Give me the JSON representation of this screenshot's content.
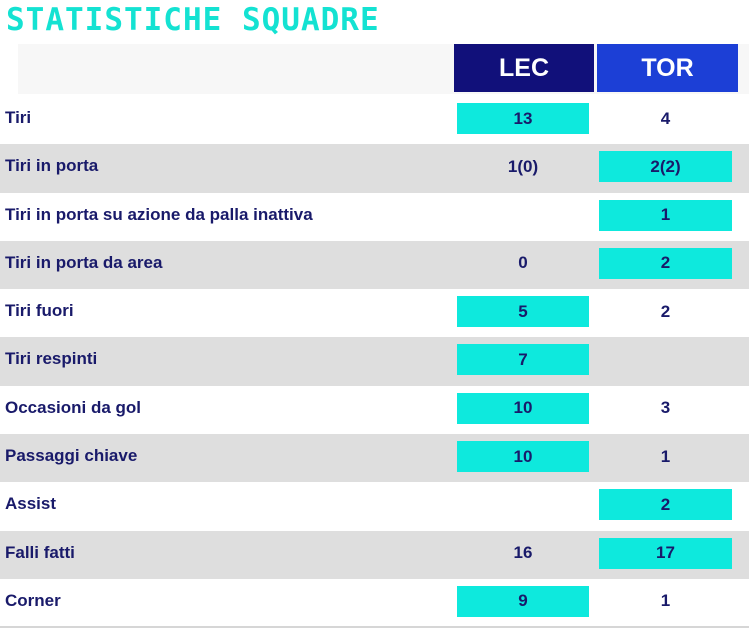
{
  "title": "STATISTICHE SQUADRE",
  "teams": {
    "home": "LEC",
    "away": "TOR"
  },
  "colors": {
    "title": "#14e2d2",
    "home_header": "#11107a",
    "away_header": "#1c3fd6",
    "highlight": "#0ee9dd",
    "text": "#191a6a",
    "row_alt": "#dedede"
  },
  "rows": [
    {
      "label": "Tiri",
      "home": "13",
      "away": "4",
      "highlight": "home"
    },
    {
      "label": "Tiri in porta",
      "home": "1(0)",
      "away": "2(2)",
      "highlight": "away"
    },
    {
      "label": "Tiri in porta su azione da palla inattiva",
      "home": "",
      "away": "1",
      "highlight": "away"
    },
    {
      "label": "Tiri in porta da area",
      "home": "0",
      "away": "2",
      "highlight": "away"
    },
    {
      "label": "Tiri fuori",
      "home": "5",
      "away": "2",
      "highlight": "home"
    },
    {
      "label": "Tiri respinti",
      "home": "7",
      "away": "",
      "highlight": "home"
    },
    {
      "label": "Occasioni da gol",
      "home": "10",
      "away": "3",
      "highlight": "home"
    },
    {
      "label": "Passaggi chiave",
      "home": "10",
      "away": "1",
      "highlight": "home"
    },
    {
      "label": "Assist",
      "home": "",
      "away": "2",
      "highlight": "away"
    },
    {
      "label": "Falli fatti",
      "home": "16",
      "away": "17",
      "highlight": "away"
    },
    {
      "label": "Corner",
      "home": "9",
      "away": "1",
      "highlight": "home"
    }
  ]
}
